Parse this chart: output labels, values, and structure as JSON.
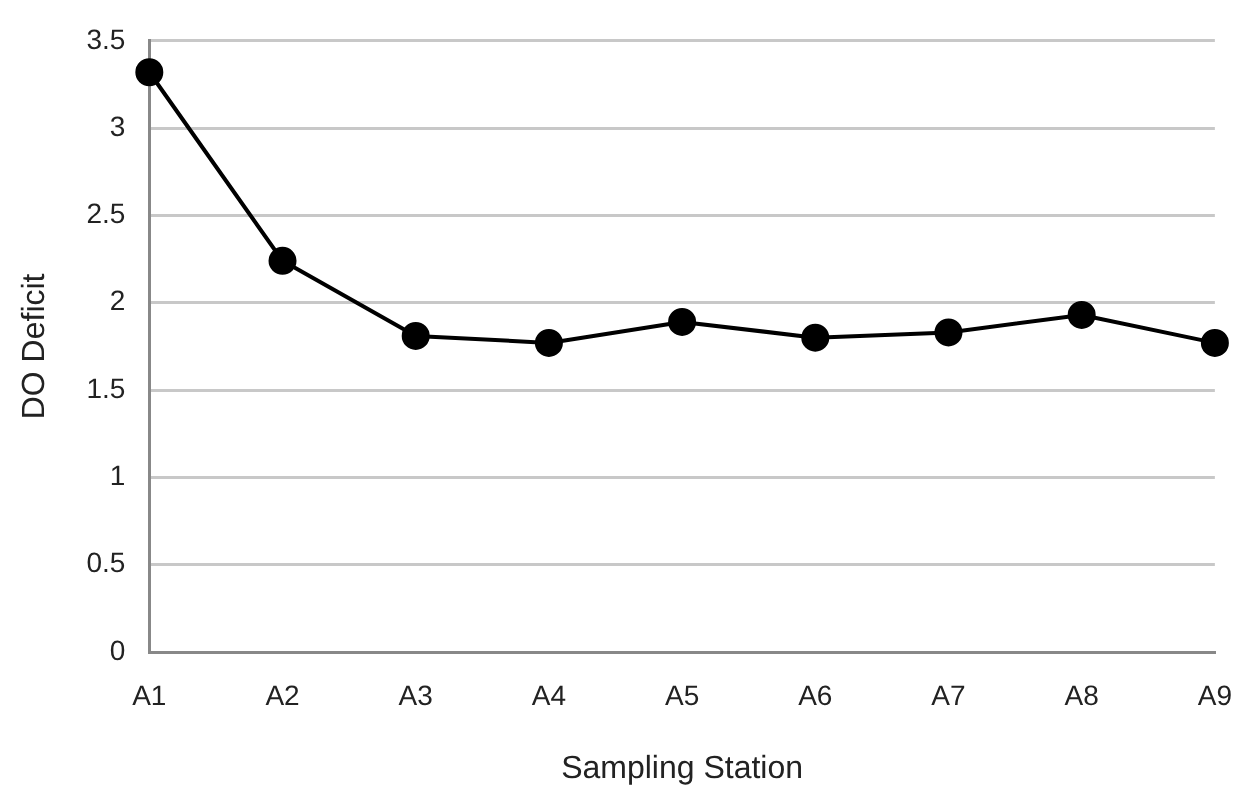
{
  "chart_data": {
    "type": "line",
    "xlabel": "Sampling Station",
    "ylabel": "DO Deficit",
    "categories": [
      "A1",
      "A2",
      "A3",
      "A4",
      "A5",
      "A6",
      "A7",
      "A8",
      "A9"
    ],
    "series": [
      {
        "color": "#000000",
        "values": [
          3.32,
          2.24,
          1.81,
          1.77,
          1.89,
          1.8,
          1.83,
          1.93,
          1.77
        ]
      }
    ],
    "ylim": [
      0,
      3.5
    ],
    "yticks": [
      0,
      0.5,
      1,
      1.5,
      2,
      2.5,
      3,
      3.5
    ],
    "grid": "y",
    "legend": false,
    "marker": "circle",
    "line_style": "solid"
  }
}
